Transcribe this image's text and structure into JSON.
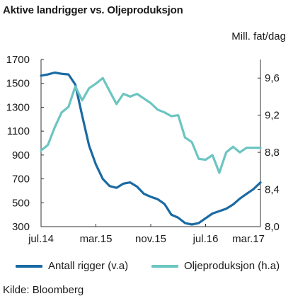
{
  "title": "Aktive landrigger vs. Oljeproduksjon",
  "right_unit": "Mill. fat/dag",
  "source": "Kilde: Bloomberg",
  "chart_data": {
    "type": "line",
    "title": "Aktive landrigger vs. Oljeproduksjon",
    "x_tick_labels": [
      "jul.14",
      "mar.15",
      "nov.15",
      "jul.16",
      "mar.17"
    ],
    "left_axis": {
      "ticks": [
        "1700",
        "1500",
        "1300",
        "1100",
        "900",
        "700",
        "500",
        "300"
      ],
      "ylim": [
        300,
        1700
      ]
    },
    "right_axis": {
      "label": "Mill. fat/dag",
      "ticks": [
        "9,6",
        "9,2",
        "8,8",
        "8,4",
        "8,0"
      ],
      "ylim": [
        8.0,
        9.8
      ]
    },
    "grid": false,
    "legend_position": "bottom",
    "series": [
      {
        "name": "Antall rigger (v.a)",
        "axis": "left",
        "color": "#1a6aa3",
        "values": [
          1565,
          1575,
          1590,
          1580,
          1575,
          1490,
          1230,
          980,
          820,
          700,
          640,
          625,
          660,
          670,
          635,
          575,
          550,
          530,
          490,
          400,
          375,
          330,
          318,
          330,
          370,
          410,
          430,
          450,
          485,
          535,
          575,
          615,
          670
        ]
      },
      {
        "name": "Oljeproduksjon (h.a)",
        "axis": "right",
        "color": "#6cc5c1",
        "values": [
          8.82,
          8.88,
          9.07,
          9.23,
          9.29,
          9.51,
          9.36,
          9.49,
          9.54,
          9.6,
          9.46,
          9.32,
          9.43,
          9.4,
          9.43,
          9.38,
          9.33,
          9.26,
          9.23,
          9.19,
          9.2,
          8.96,
          8.91,
          8.73,
          8.72,
          8.77,
          8.58,
          8.8,
          8.86,
          8.8,
          8.85,
          8.85,
          8.85
        ]
      }
    ]
  }
}
